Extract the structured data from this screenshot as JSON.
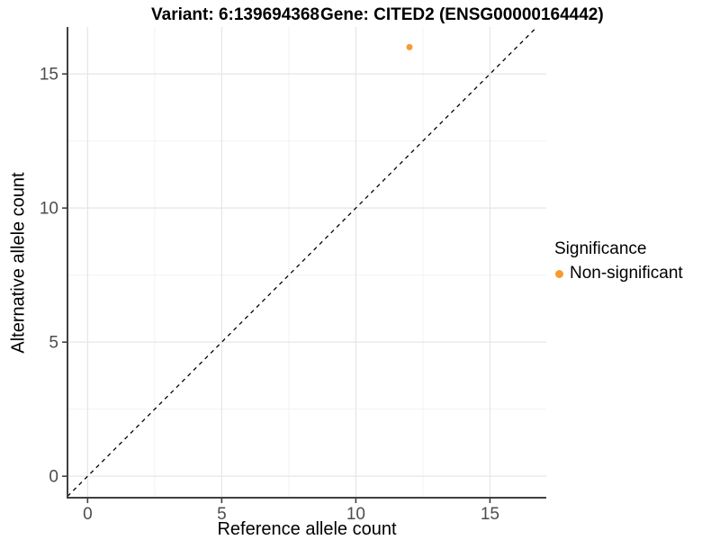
{
  "titles": {
    "variant": "Variant: 6:139694368",
    "gene": "Gene: CITED2 (ENSG00000164442)"
  },
  "chart_data": {
    "type": "scatter",
    "xlabel": "Reference allele count",
    "ylabel": "Alternative allele count",
    "x_ticks": [
      0,
      5,
      10,
      15
    ],
    "y_ticks": [
      0,
      5,
      10,
      15
    ],
    "x_minor_ticks": [
      2.5,
      7.5,
      12.5
    ],
    "y_minor_ticks": [
      2.5,
      7.5,
      12.5
    ],
    "xlim": [
      -0.75,
      17.1
    ],
    "ylim": [
      -0.8,
      16.75
    ],
    "grid": "major+minor",
    "legend_position": "right",
    "points": [
      {
        "x": 12,
        "y": 16,
        "series": "Non-significant"
      }
    ],
    "identity_line": {
      "style": "dashed",
      "slope": 1,
      "intercept": 0
    }
  },
  "legend": {
    "title": "Significance",
    "items": [
      {
        "label": "Non-significant",
        "color": "#F89B2F"
      }
    ]
  },
  "colors": {
    "point_nonsignificant": "#F89B2F",
    "gridline_major": "#E6E6E6",
    "gridline_minor": "#F1F1F1",
    "axis_line": "#404040",
    "tick_mark": "#404040",
    "tick_label": "#4D4D4D",
    "identity_line": "#000000",
    "background": "#FFFFFF"
  }
}
